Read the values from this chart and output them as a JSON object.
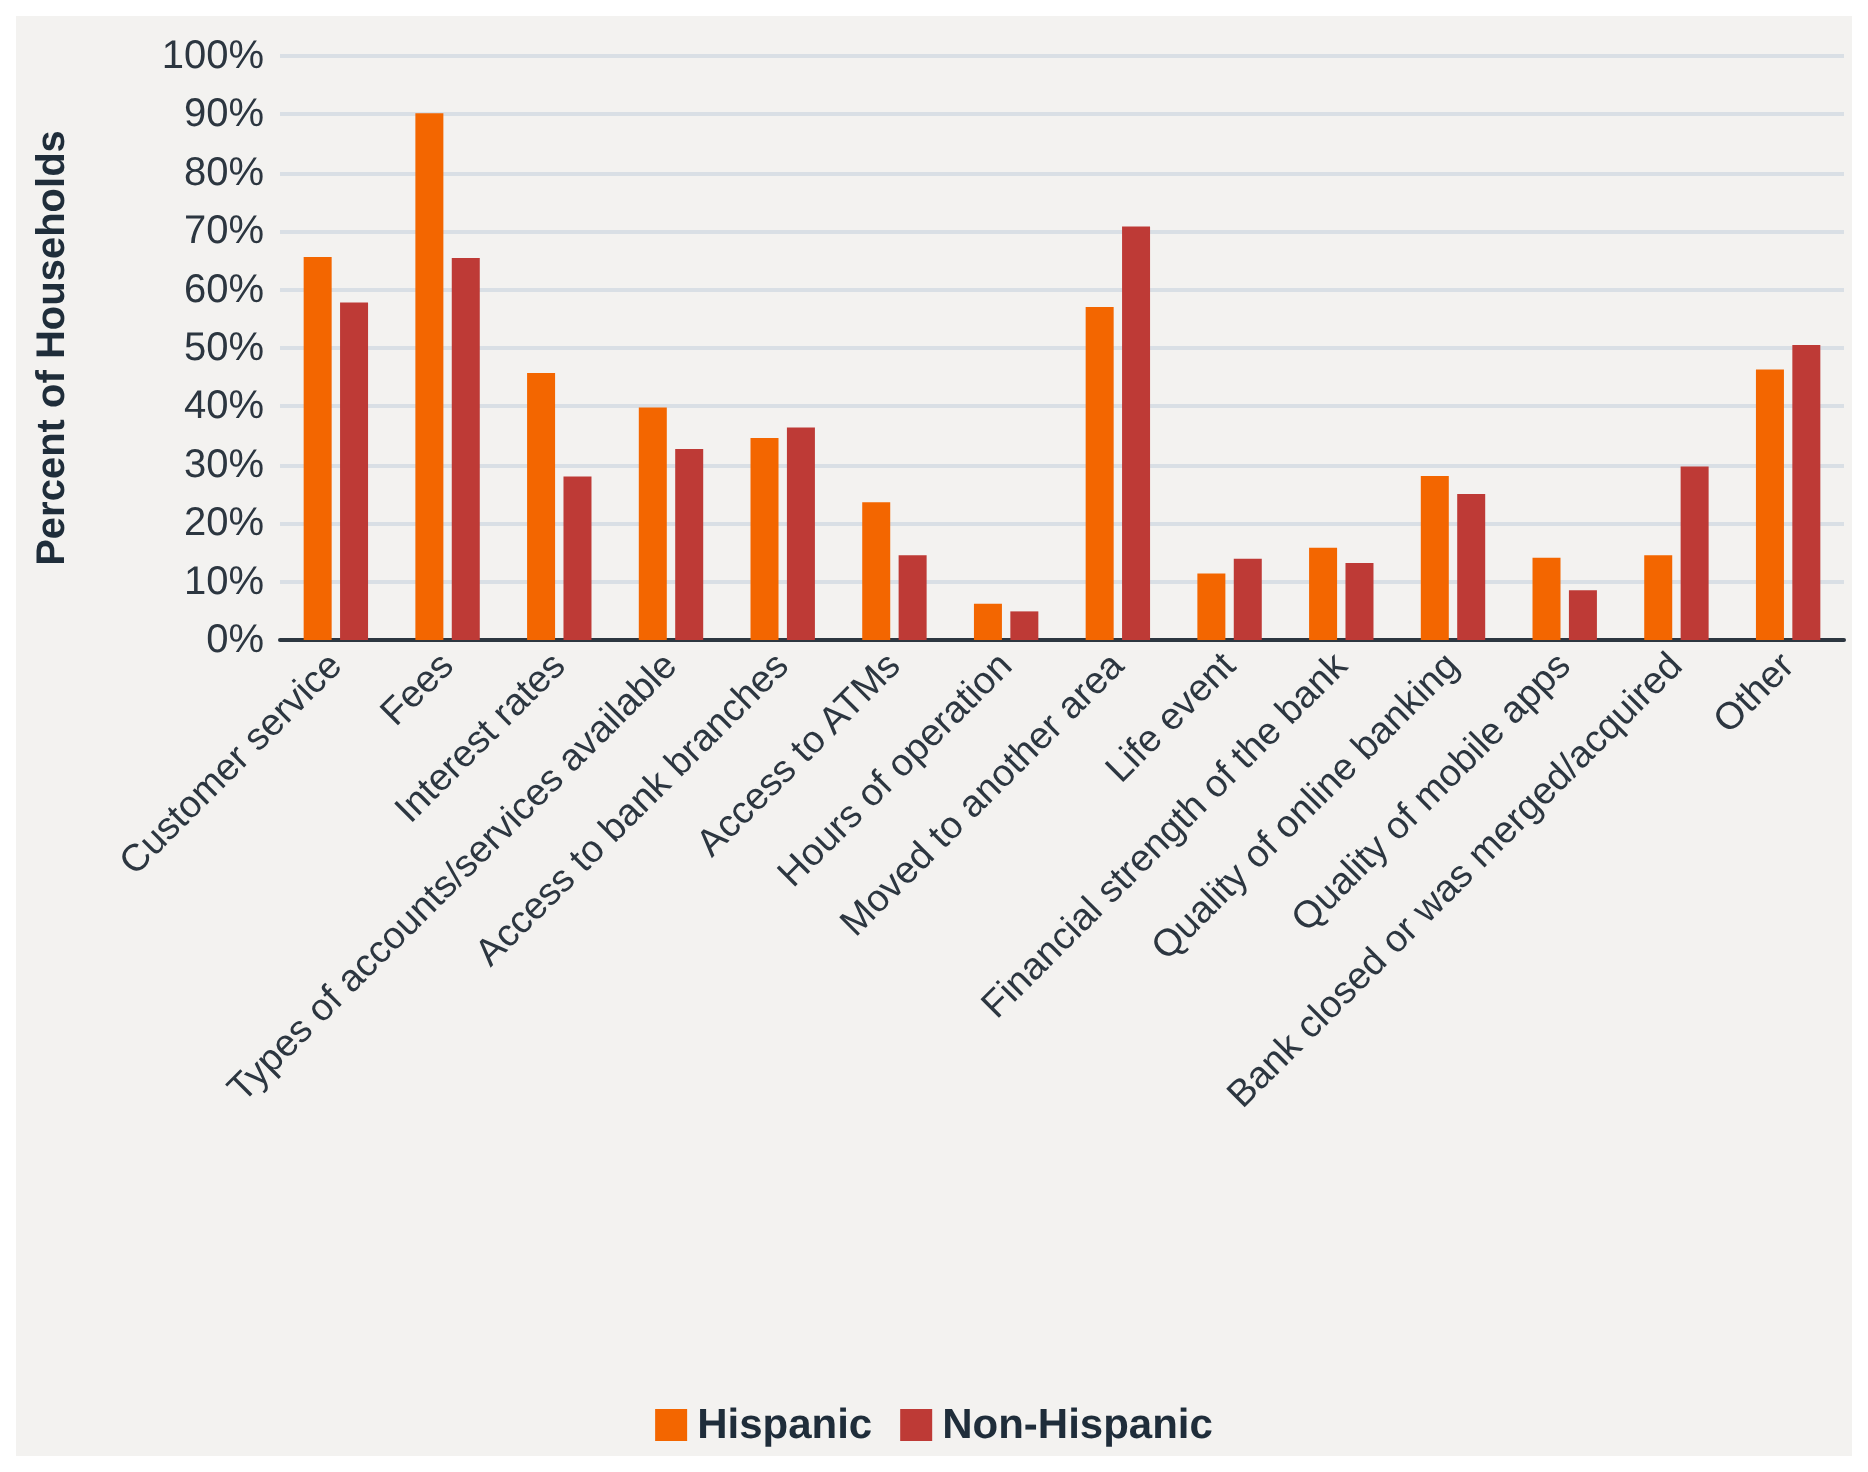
{
  "chart_data": {
    "type": "bar",
    "ylabel": "Percent of Households",
    "categories": [
      "Customer service",
      "Fees",
      "Interest rates",
      "Types of accounts/services available",
      "Access to bank branches",
      "Access to ATMs",
      "Hours of operation",
      "Moved to another area",
      "Life event",
      "Financial strength of the bank",
      "Quality of online banking",
      "Quality of mobile apps",
      "Bank closed or was merged/acquired",
      "Other"
    ],
    "series": [
      {
        "name": "Hispanic",
        "color": "#f36600",
        "values": [
          65.6,
          90.2,
          45.7,
          39.8,
          34.6,
          23.6,
          6.2,
          57.0,
          11.4,
          15.8,
          28.1,
          14.1,
          14.5,
          46.3
        ]
      },
      {
        "name": "Non-Hispanic",
        "color": "#be3a36",
        "values": [
          57.8,
          65.4,
          28.0,
          32.7,
          36.4,
          14.5,
          4.9,
          70.8,
          13.9,
          13.2,
          25.0,
          8.5,
          29.7,
          50.5
        ]
      }
    ],
    "ylim": [
      0,
      100
    ],
    "yticks": [
      {
        "value": 0,
        "label": "0%"
      },
      {
        "value": 10,
        "label": "10%"
      },
      {
        "value": 20,
        "label": "20%"
      },
      {
        "value": 30,
        "label": "30%"
      },
      {
        "value": 40,
        "label": "40%"
      },
      {
        "value": 50,
        "label": "50%"
      },
      {
        "value": 60,
        "label": "60%"
      },
      {
        "value": 70,
        "label": "70%"
      },
      {
        "value": 80,
        "label": "80%"
      },
      {
        "value": 90,
        "label": "90%"
      },
      {
        "value": 100,
        "label": "100%"
      }
    ],
    "grid": "y",
    "legend": "bottom"
  }
}
